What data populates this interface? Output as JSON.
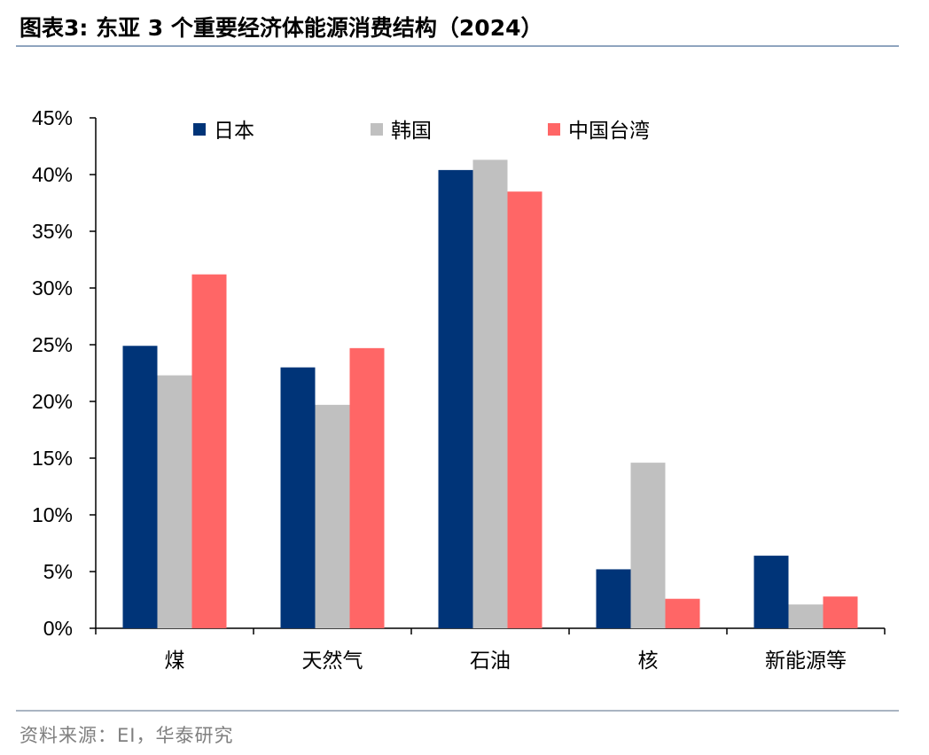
{
  "figure": {
    "title": "图表3:   东亚 3 个重要经济体能源消费结构（2024）",
    "source": "资料来源：EI，华泰研究"
  },
  "chart_data": {
    "type": "bar",
    "categories": [
      "煤",
      "天然气",
      "石油",
      "核",
      "新能源等"
    ],
    "series": [
      {
        "name": "日本",
        "color": "#003478",
        "values": [
          24.9,
          23.0,
          40.4,
          5.2,
          6.4
        ]
      },
      {
        "name": "韩国",
        "color": "#c0c0c0",
        "values": [
          22.3,
          19.7,
          41.3,
          14.6,
          2.1
        ]
      },
      {
        "name": "中国台湾",
        "color": "#ff6666",
        "values": [
          31.2,
          24.7,
          38.5,
          2.6,
          2.8
        ]
      }
    ],
    "ylim": [
      0,
      45
    ],
    "yticks": [
      "0%",
      "5%",
      "10%",
      "15%",
      "20%",
      "25%",
      "30%",
      "35%",
      "40%",
      "45%"
    ],
    "ytick_values": [
      0,
      5,
      10,
      15,
      20,
      25,
      30,
      35,
      40,
      45
    ],
    "y_unit": "%",
    "grid": false,
    "legend_position": "top"
  }
}
